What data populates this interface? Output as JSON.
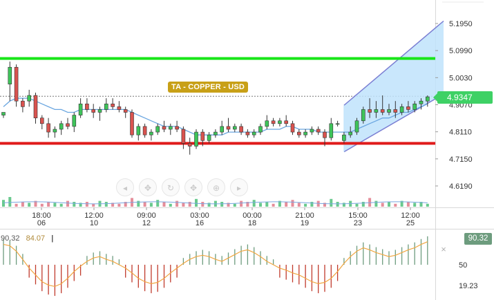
{
  "title": "TA - COPPER - USD",
  "price_badge": "4.9347",
  "price_axis": {
    "ticks": [
      "5.1950",
      "5.0990",
      "5.0030",
      "4.9070",
      "4.8110",
      "4.7150",
      "4.6190"
    ],
    "values": [
      5.195,
      5.099,
      5.003,
      4.907,
      4.811,
      4.715,
      4.619
    ]
  },
  "oscillator": {
    "value_a": "90.32",
    "value_b": "84.07",
    "badge": "90.32",
    "level_50": "50",
    "level_low": "19.23",
    "close_glyph": "×"
  },
  "time_axis": {
    "labels": [
      {
        "time": "18:00",
        "date": "06"
      },
      {
        "time": "12:00",
        "date": "10"
      },
      {
        "time": "09:00",
        "date": "12"
      },
      {
        "time": "03:00",
        "date": "16"
      },
      {
        "time": "00:00",
        "date": "18"
      },
      {
        "time": "21:00",
        "date": "19"
      },
      {
        "time": "15:00",
        "date": "23"
      },
      {
        "time": "12:00",
        "date": "25"
      }
    ]
  },
  "toolbar": {
    "icons": [
      "arrow-left-icon",
      "pointer-icon",
      "cycle-icon",
      "pointer-alt-icon",
      "zoom-icon",
      "arrow-right-icon"
    ],
    "glyphs": [
      "◂",
      "✥",
      "↻",
      "✥",
      "⊕",
      "▸"
    ]
  },
  "colors": {
    "up": "#3ec45a",
    "down": "#d9534f",
    "resistance": "#19e619",
    "support": "#e01b1b",
    "ma": "#6aa6e0",
    "channel_fill": "#bfe3fb",
    "channel_line": "#7b7fd3",
    "osc_line": "#f0a640",
    "osc_up": "#6d9c7e",
    "osc_down": "#c0392b"
  },
  "chart_data": {
    "type": "candlestick",
    "title": "TA - COPPER - USD",
    "ylim": [
      4.58,
      5.24
    ],
    "last_price": 4.9347,
    "resistance_level": 5.071,
    "support_level": 4.77,
    "candles": [
      [
        4.87,
        4.88,
        4.86,
        4.88
      ],
      [
        4.98,
        5.06,
        4.92,
        5.04
      ],
      [
        5.04,
        5.05,
        4.9,
        4.92
      ],
      [
        4.92,
        4.93,
        4.88,
        4.9
      ],
      [
        4.92,
        4.96,
        4.9,
        4.94
      ],
      [
        4.94,
        4.95,
        4.84,
        4.86
      ],
      [
        4.86,
        4.87,
        4.82,
        4.84
      ],
      [
        4.84,
        4.86,
        4.79,
        4.81
      ],
      [
        4.81,
        4.83,
        4.79,
        4.82
      ],
      [
        4.82,
        4.85,
        4.8,
        4.84
      ],
      [
        4.84,
        4.86,
        4.82,
        4.83
      ],
      [
        4.83,
        4.88,
        4.81,
        4.87
      ],
      [
        4.87,
        4.93,
        4.86,
        4.91
      ],
      [
        4.91,
        4.93,
        4.88,
        4.89
      ],
      [
        4.89,
        4.91,
        4.86,
        4.88
      ],
      [
        4.88,
        4.9,
        4.85,
        4.89
      ],
      [
        4.89,
        4.93,
        4.88,
        4.91
      ],
      [
        4.91,
        4.93,
        4.89,
        4.9
      ],
      [
        4.9,
        4.92,
        4.88,
        4.89
      ],
      [
        4.89,
        4.9,
        4.86,
        4.88
      ],
      [
        4.88,
        4.89,
        4.79,
        4.8
      ],
      [
        4.8,
        4.84,
        4.78,
        4.83
      ],
      [
        4.83,
        4.84,
        4.79,
        4.8
      ],
      [
        4.8,
        4.82,
        4.78,
        4.81
      ],
      [
        4.81,
        4.84,
        4.8,
        4.83
      ],
      [
        4.83,
        4.85,
        4.81,
        4.82
      ],
      [
        4.82,
        4.84,
        4.8,
        4.83
      ],
      [
        4.83,
        4.85,
        4.81,
        4.82
      ],
      [
        4.82,
        4.83,
        4.75,
        4.77
      ],
      [
        4.77,
        4.79,
        4.73,
        4.76
      ],
      [
        4.76,
        4.82,
        4.75,
        4.81
      ],
      [
        4.81,
        4.82,
        4.76,
        4.78
      ],
      [
        4.78,
        4.81,
        4.77,
        4.8
      ],
      [
        4.8,
        4.82,
        4.79,
        4.81
      ],
      [
        4.81,
        4.85,
        4.8,
        4.83
      ],
      [
        4.83,
        4.86,
        4.81,
        4.82
      ],
      [
        4.82,
        4.84,
        4.81,
        4.83
      ],
      [
        4.83,
        4.84,
        4.8,
        4.81
      ],
      [
        4.81,
        4.82,
        4.79,
        4.8
      ],
      [
        4.8,
        4.82,
        4.79,
        4.81
      ],
      [
        4.81,
        4.84,
        4.8,
        4.83
      ],
      [
        4.83,
        4.87,
        4.82,
        4.85
      ],
      [
        4.85,
        4.86,
        4.83,
        4.84
      ],
      [
        4.84,
        4.86,
        4.83,
        4.85
      ],
      [
        4.85,
        4.87,
        4.83,
        4.84
      ],
      [
        4.84,
        4.85,
        4.8,
        4.81
      ],
      [
        4.81,
        4.82,
        4.79,
        4.8
      ],
      [
        4.8,
        4.82,
        4.79,
        4.81
      ],
      [
        4.81,
        4.83,
        4.8,
        4.82
      ],
      [
        4.82,
        4.83,
        4.8,
        4.81
      ],
      [
        4.81,
        4.82,
        4.76,
        4.79
      ],
      [
        4.79,
        4.86,
        4.78,
        4.84
      ],
      [
        4.84,
        4.85,
        4.83,
        4.84
      ],
      [
        4.78,
        4.81,
        4.77,
        4.8
      ],
      [
        4.8,
        4.83,
        4.79,
        4.81
      ],
      [
        4.81,
        4.86,
        4.8,
        4.85
      ],
      [
        4.85,
        4.9,
        4.84,
        4.89
      ],
      [
        4.89,
        4.93,
        4.86,
        4.88
      ],
      [
        4.88,
        4.92,
        4.86,
        4.89
      ],
      [
        4.89,
        4.94,
        4.87,
        4.88
      ],
      [
        4.88,
        4.91,
        4.87,
        4.89
      ],
      [
        4.89,
        4.92,
        4.86,
        4.88
      ],
      [
        4.88,
        4.91,
        4.87,
        4.9
      ],
      [
        4.9,
        4.92,
        4.88,
        4.89
      ],
      [
        4.89,
        4.92,
        4.88,
        4.91
      ],
      [
        4.91,
        4.93,
        4.89,
        4.92
      ],
      [
        4.92,
        4.94,
        4.9,
        4.935
      ]
    ],
    "moving_average": [
      4.9,
      4.92,
      4.93,
      4.93,
      4.93,
      4.92,
      4.91,
      4.9,
      4.89,
      4.89,
      4.88,
      4.88,
      4.89,
      4.89,
      4.89,
      4.89,
      4.89,
      4.89,
      4.89,
      4.89,
      4.88,
      4.87,
      4.86,
      4.85,
      4.84,
      4.83,
      4.83,
      4.83,
      4.82,
      4.81,
      4.8,
      4.8,
      4.8,
      4.8,
      4.8,
      4.81,
      4.81,
      4.81,
      4.81,
      4.81,
      4.81,
      4.82,
      4.82,
      4.82,
      4.83,
      4.83,
      4.82,
      4.82,
      4.82,
      4.81,
      4.81,
      4.81,
      4.81,
      4.81,
      4.81,
      4.82,
      4.83,
      4.84,
      4.85,
      4.86,
      4.86,
      4.87,
      4.88,
      4.88,
      4.89,
      4.9,
      4.91
    ],
    "volume": [
      0.7,
      1.0,
      0.3,
      0.5,
      0.4,
      0.6,
      0.3,
      0.5,
      0.4,
      0.3,
      0.6,
      0.5,
      0.4,
      0.5,
      0.3,
      0.6,
      0.5,
      0.4,
      0.3,
      0.5,
      0.9,
      0.6,
      0.5,
      0.4,
      0.7,
      0.5,
      0.3,
      0.6,
      0.4,
      0.5,
      0.8,
      0.5,
      0.4,
      0.6,
      0.5,
      0.4,
      0.3,
      0.6,
      0.5,
      0.7,
      0.4,
      0.5,
      0.3,
      0.6,
      0.5,
      0.7,
      0.4,
      0.3,
      0.5,
      0.6,
      0.4,
      0.8,
      0.5,
      0.4,
      0.6,
      0.3,
      0.5,
      0.9,
      0.6,
      0.4,
      0.5,
      0.3,
      0.6,
      0.5,
      0.4,
      0.5,
      0.3
    ],
    "channel": {
      "lower": [
        [
          53,
          4.74
        ],
        [
          67,
          4.925
        ]
      ],
      "upper": [
        [
          53,
          4.905
        ],
        [
          67,
          5.175
        ]
      ]
    },
    "oscillator": {
      "ylim": [
        0,
        100
      ],
      "levels": [
        50,
        19.23
      ],
      "line": [
        80,
        78,
        70,
        58,
        45,
        35,
        25,
        20,
        18,
        22,
        30,
        40,
        48,
        55,
        60,
        62,
        58,
        55,
        50,
        45,
        38,
        30,
        25,
        22,
        24,
        30,
        38,
        45,
        52,
        58,
        62,
        64,
        62,
        58,
        55,
        60,
        65,
        70,
        72,
        68,
        62,
        55,
        50,
        45,
        42,
        38,
        35,
        30,
        25,
        22,
        24,
        30,
        40,
        52,
        62,
        70,
        75,
        72,
        68,
        65,
        62,
        64,
        68,
        72,
        75,
        80,
        84
      ]
    }
  }
}
